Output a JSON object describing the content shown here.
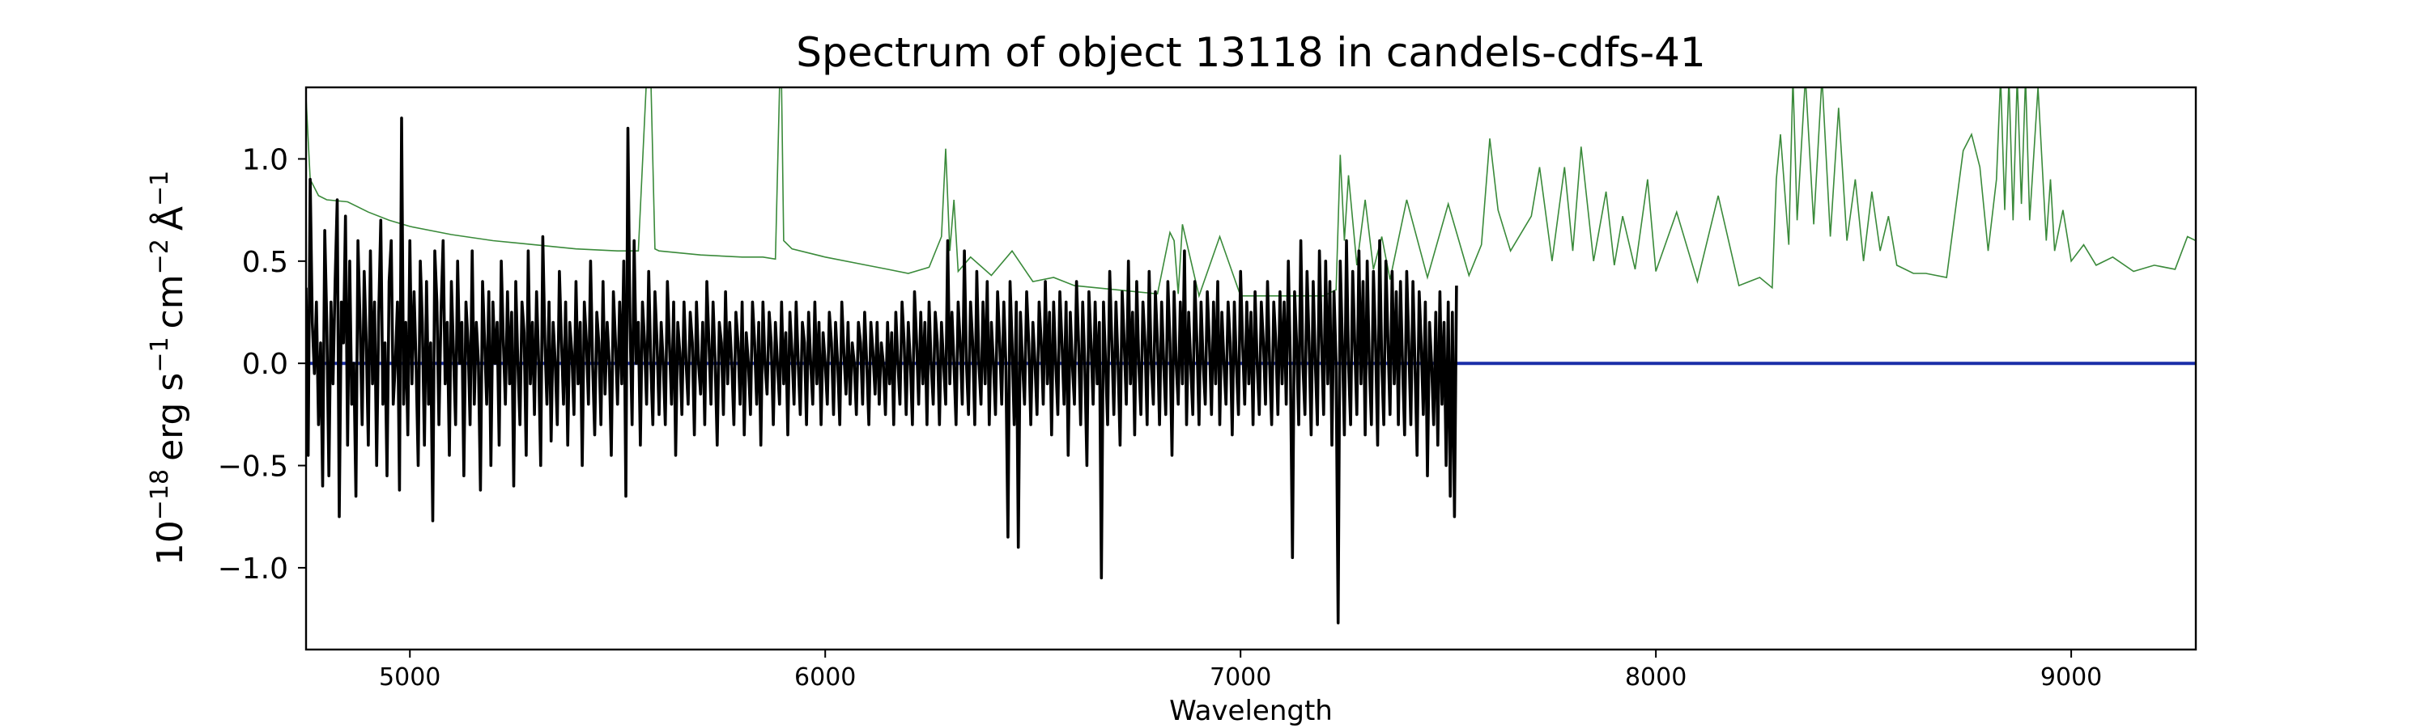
{
  "chart_data": {
    "type": "line",
    "title": "Spectrum of object 13118 in candels-cdfs-41",
    "xlabel": "Wavelength",
    "ylabel": {
      "base": "10",
      "exp": "−18",
      "unit_erg": "erg s",
      "exp_s": "−1",
      "unit_cm": "cm",
      "exp_cm": "−2",
      "unit_ang": "Å",
      "exp_ang": "−1"
    },
    "xlim": [
      4750,
      9300
    ],
    "ylim": [
      -1.4,
      1.35
    ],
    "xticks": [
      5000,
      6000,
      7000,
      8000,
      9000
    ],
    "xtick_labels": [
      "5000",
      "6000",
      "7000",
      "8000",
      "9000"
    ],
    "yticks": [
      -1.0,
      -0.5,
      0.0,
      0.5,
      1.0
    ],
    "ytick_labels": [
      "−1.0",
      "−0.5",
      "0.0",
      "0.5",
      "1.0"
    ],
    "grid": false,
    "series": [
      {
        "role": "error",
        "color": "#3a8a3a",
        "x": [
          4750,
          4760,
          4780,
          4800,
          4850,
          4900,
          4950,
          5000,
          5100,
          5200,
          5300,
          5400,
          5500,
          5550,
          5570,
          5580,
          5590,
          5600,
          5700,
          5800,
          5850,
          5880,
          5890,
          5895,
          5900,
          5920,
          6000,
          6100,
          6150,
          6200,
          6250,
          6280,
          6290,
          6300,
          6310,
          6320,
          6350,
          6400,
          6450,
          6500,
          6550,
          6600,
          6700,
          6800,
          6830,
          6840,
          6850,
          6860,
          6900,
          6950,
          7000,
          7100,
          7200,
          7230,
          7240,
          7250,
          7260,
          7280,
          7300,
          7320,
          7340,
          7360,
          7400,
          7450,
          7500,
          7550,
          7580,
          7600,
          7620,
          7650,
          7700,
          7720,
          7750,
          7780,
          7800,
          7820,
          7850,
          7880,
          7900,
          7920,
          7950,
          7980,
          8000,
          8050,
          8100,
          8150,
          8200,
          8250,
          8280,
          8290,
          8300,
          8320,
          8330,
          8340,
          8360,
          8380,
          8400,
          8420,
          8440,
          8460,
          8480,
          8500,
          8520,
          8540,
          8560,
          8580,
          8600,
          8620,
          8650,
          8700,
          8740,
          8760,
          8780,
          8800,
          8820,
          8830,
          8840,
          8850,
          8860,
          8870,
          8880,
          8890,
          8900,
          8920,
          8940,
          8950,
          8960,
          8980,
          9000,
          9030,
          9060,
          9100,
          9150,
          9200,
          9250,
          9280,
          9300
        ],
        "y": [
          1.3,
          0.9,
          0.82,
          0.8,
          0.79,
          0.74,
          0.7,
          0.67,
          0.63,
          0.6,
          0.58,
          0.56,
          0.55,
          0.55,
          1.4,
          1.4,
          0.56,
          0.55,
          0.53,
          0.52,
          0.52,
          0.51,
          1.35,
          1.35,
          0.6,
          0.56,
          0.52,
          0.48,
          0.46,
          0.44,
          0.47,
          0.62,
          1.05,
          0.55,
          0.8,
          0.45,
          0.52,
          0.43,
          0.55,
          0.4,
          0.42,
          0.38,
          0.36,
          0.34,
          0.64,
          0.6,
          0.34,
          0.68,
          0.33,
          0.62,
          0.33,
          0.33,
          0.33,
          0.36,
          1.02,
          0.6,
          0.92,
          0.48,
          0.8,
          0.46,
          0.62,
          0.41,
          0.8,
          0.42,
          0.78,
          0.43,
          0.58,
          1.1,
          0.75,
          0.55,
          0.72,
          0.96,
          0.5,
          0.96,
          0.55,
          1.06,
          0.5,
          0.84,
          0.48,
          0.72,
          0.46,
          0.9,
          0.45,
          0.74,
          0.4,
          0.82,
          0.38,
          0.42,
          0.37,
          0.9,
          1.12,
          0.58,
          1.4,
          0.7,
          1.4,
          0.68,
          1.4,
          0.62,
          1.25,
          0.6,
          0.9,
          0.5,
          0.84,
          0.55,
          0.72,
          0.48,
          0.46,
          0.44,
          0.44,
          0.42,
          1.04,
          1.12,
          0.96,
          0.55,
          0.9,
          1.4,
          0.75,
          1.4,
          0.7,
          1.4,
          0.78,
          1.4,
          0.7,
          1.35,
          0.6,
          0.9,
          0.55,
          0.75,
          0.5,
          0.58,
          0.48,
          0.52,
          0.45,
          0.48,
          0.46,
          0.62,
          0.6
        ]
      },
      {
        "role": "model",
        "color": "#1a2ea8",
        "x": [
          4750,
          9300
        ],
        "y": [
          0.0,
          0.0
        ]
      },
      {
        "role": "flux",
        "color": "#000000",
        "x_start": 4750,
        "x_step": 5,
        "y": [
          0.37,
          -0.45,
          0.9,
          0.2,
          -0.05,
          0.3,
          -0.3,
          0.1,
          -0.6,
          0.65,
          0.2,
          -0.55,
          0.3,
          -0.1,
          0.4,
          0.8,
          -0.75,
          0.3,
          0.1,
          0.72,
          -0.4,
          0.5,
          -0.2,
          0.0,
          -0.65,
          0.6,
          0.2,
          -0.3,
          0.45,
          0.1,
          -0.4,
          0.55,
          -0.1,
          0.3,
          -0.5,
          0.25,
          0.7,
          -0.2,
          0.1,
          -0.55,
          0.4,
          0.6,
          -0.2,
          0.0,
          0.3,
          -0.62,
          1.2,
          -0.2,
          0.2,
          -0.35,
          0.6,
          -0.1,
          0.35,
          0.0,
          -0.5,
          0.5,
          0.2,
          -0.4,
          0.4,
          -0.2,
          0.1,
          -0.77,
          0.55,
          0.3,
          -0.3,
          0.25,
          0.6,
          -0.1,
          0.2,
          -0.45,
          0.4,
          0.05,
          -0.3,
          0.5,
          0.0,
          0.2,
          -0.55,
          0.3,
          0.1,
          -0.3,
          0.55,
          -0.2,
          0.2,
          0.0,
          -0.62,
          0.4,
          0.1,
          -0.2,
          0.35,
          -0.5,
          0.3,
          0.0,
          0.2,
          -0.4,
          0.5,
          0.1,
          -0.2,
          0.35,
          -0.1,
          0.25,
          -0.6,
          0.4,
          0.0,
          -0.3,
          0.3,
          0.15,
          -0.45,
          0.55,
          -0.1,
          0.2,
          -0.25,
          0.35,
          0.0,
          -0.5,
          0.62,
          0.1,
          -0.2,
          0.3,
          -0.38,
          0.2,
          0.0,
          -0.3,
          0.45,
          0.1,
          -0.2,
          0.3,
          -0.4,
          0.2,
          0.05,
          -0.25,
          0.4,
          -0.1,
          0.2,
          -0.5,
          0.3,
          0.1,
          -0.2,
          0.5,
          0.0,
          -0.35,
          0.25,
          0.1,
          -0.3,
          0.4,
          -0.15,
          0.2,
          0.0,
          -0.45,
          0.35,
          0.1,
          -0.2,
          0.3,
          -0.1,
          0.5,
          -0.65,
          1.15,
          0.2,
          -0.3,
          0.6,
          0.0,
          0.2,
          -0.4,
          0.3,
          0.1,
          -0.2,
          0.45,
          0.0,
          -0.3,
          0.35,
          0.1,
          -0.25,
          0.2,
          0.0,
          -0.3,
          0.4,
          0.1,
          -0.2,
          0.3,
          -0.45,
          0.2,
          0.05,
          -0.25,
          0.3,
          0.0,
          -0.2,
          0.25,
          0.1,
          -0.35,
          0.3,
          0.0,
          -0.15,
          0.2,
          -0.3,
          0.4,
          0.1,
          -0.2,
          0.3,
          0.0,
          -0.4,
          0.2,
          0.1,
          -0.25,
          0.35,
          -0.1,
          0.2,
          0.0,
          -0.3,
          0.25,
          0.1,
          -0.2,
          0.3,
          -0.35,
          0.15,
          0.0,
          -0.25,
          0.3,
          0.1,
          -0.2,
          0.2,
          -0.4,
          0.3,
          0.0,
          -0.15,
          0.25,
          0.1,
          -0.3,
          0.2,
          0.0,
          -0.2,
          0.3,
          -0.1,
          0.15,
          -0.35,
          0.25,
          0.05,
          -0.2,
          0.3,
          0.0,
          -0.25,
          0.2,
          0.1,
          -0.3,
          0.25,
          0.0,
          -0.2,
          0.3,
          -0.1,
          0.2,
          -0.3,
          0.15,
          0.0,
          -0.2,
          0.25,
          0.1,
          -0.25,
          0.2,
          0.0,
          -0.3,
          0.3,
          0.05,
          -0.15,
          0.2,
          -0.2,
          0.1,
          0.0,
          -0.25,
          0.2,
          0.1,
          -0.2,
          0.25,
          0.0,
          -0.3,
          0.2,
          0.05,
          -0.15,
          0.2,
          -0.2,
          0.1,
          0.0,
          -0.25,
          0.2,
          -0.1,
          0.15,
          -0.3,
          0.25,
          0.0,
          -0.2,
          0.3,
          0.1,
          -0.25,
          0.2,
          0.0,
          -0.3,
          0.35,
          0.1,
          -0.2,
          0.25,
          -0.1,
          0.2,
          -0.3,
          0.3,
          0.0,
          -0.2,
          0.25,
          0.1,
          -0.3,
          0.2,
          0.0,
          -0.2,
          0.6,
          -0.1,
          0.25,
          0.0,
          -0.3,
          0.3,
          0.1,
          -0.2,
          0.55,
          0.0,
          -0.25,
          0.3,
          0.1,
          -0.3,
          0.45,
          0.0,
          -0.2,
          0.3,
          -0.1,
          0.4,
          -0.3,
          0.2,
          0.0,
          -0.25,
          0.35,
          0.1,
          -0.2,
          0.3,
          0.0,
          -0.85,
          0.4,
          0.1,
          -0.3,
          0.3,
          -0.9,
          0.25,
          0.0,
          -0.2,
          0.35,
          0.1,
          -0.3,
          0.2,
          0.0,
          -0.25,
          0.3,
          0.1,
          -0.2,
          0.4,
          -0.1,
          0.25,
          -0.35,
          0.3,
          0.0,
          -0.25,
          0.35,
          0.1,
          -0.2,
          0.3,
          -0.45,
          0.25,
          0.0,
          -0.2,
          0.4,
          0.1,
          -0.3,
          0.3,
          0.0,
          -0.5,
          0.35,
          0.1,
          -0.2,
          0.3,
          -0.1,
          0.2,
          -1.05,
          0.3,
          0.0,
          -0.3,
          0.45,
          0.1,
          -0.25,
          0.3,
          0.0,
          -0.4,
          0.35,
          0.1,
          -0.2,
          0.5,
          -0.1,
          0.25,
          -0.35,
          0.4,
          0.0,
          -0.25,
          0.3,
          0.1,
          -0.3,
          0.45,
          0.0,
          -0.2,
          0.35,
          0.1,
          -0.3,
          0.3,
          0.0,
          -0.25,
          0.4,
          0.1,
          -0.45,
          0.35,
          0.0,
          -0.2,
          0.3,
          -0.1,
          0.55,
          -0.3,
          0.25,
          0.0,
          -0.25,
          0.4,
          0.1,
          -0.3,
          0.3,
          0.0,
          -0.2,
          0.35,
          0.1,
          -0.25,
          0.3,
          -0.1,
          0.4,
          -0.3,
          0.25,
          0.0,
          -0.2,
          0.3,
          0.1,
          -0.35,
          0.3,
          0.0,
          -0.25,
          0.45,
          0.1,
          -0.2,
          0.3,
          -0.1,
          0.25,
          -0.3,
          0.35,
          0.0,
          -0.25,
          0.3,
          0.1,
          -0.2,
          0.4,
          0.0,
          -0.3,
          0.3,
          0.1,
          -0.25,
          0.35,
          -0.1,
          0.3,
          -0.2,
          0.5,
          0.0,
          -0.95,
          0.35,
          0.1,
          -0.3,
          0.6,
          0.0,
          -0.25,
          0.45,
          0.1,
          -0.35,
          0.4,
          0.0,
          -0.3,
          0.55,
          0.1,
          -0.25,
          0.5,
          -0.1,
          0.4,
          -0.4,
          0.35,
          0.0,
          -1.27,
          0.5,
          0.1,
          -0.35,
          0.6,
          0.0,
          -0.3,
          0.45,
          0.1,
          -0.25,
          0.55,
          -0.1,
          0.4,
          -0.35,
          0.5,
          0.0,
          -0.3,
          0.45,
          0.1,
          -0.4,
          0.6,
          0.0,
          -0.3,
          0.5,
          0.1,
          -0.25,
          0.45,
          -0.1,
          0.35,
          -0.3,
          0.4,
          0.0,
          -0.35,
          0.45,
          0.1,
          -0.3,
          0.4,
          0.0,
          -0.45,
          0.35,
          0.1,
          -0.25,
          0.3,
          -0.55,
          0.2,
          0.0,
          -0.3,
          0.25,
          -0.4,
          0.35,
          -0.2,
          0.2,
          -0.5,
          0.3,
          -0.65,
          0.25,
          -0.75,
          0.38
        ]
      }
    ]
  }
}
